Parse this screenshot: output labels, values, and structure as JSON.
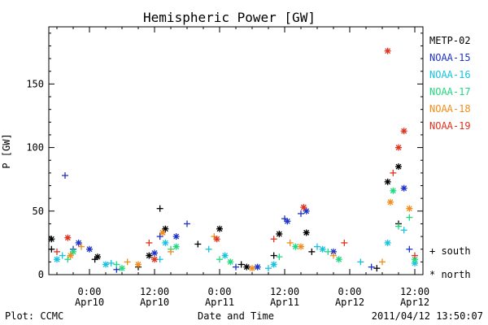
{
  "chart_data": {
    "type": "scatter",
    "title": "Hemispheric Power [GW]",
    "ylabel": "P [GW]",
    "xlabel": "Date and Time",
    "xlim": [
      "2011-04-09T16:30",
      "2011-04-12T13:30"
    ],
    "ylim": [
      0,
      195
    ],
    "y_ticks": [
      0,
      50,
      100,
      150
    ],
    "x_ticks": [
      {
        "time": "2011-04-10T00:00",
        "label1": "0:00",
        "label2": "Apr10"
      },
      {
        "time": "2011-04-10T12:00",
        "label1": "12:00",
        "label2": "Apr10"
      },
      {
        "time": "2011-04-11T00:00",
        "label1": "0:00",
        "label2": "Apr11"
      },
      {
        "time": "2011-04-11T12:00",
        "label1": "12:00",
        "label2": "Apr11"
      },
      {
        "time": "2011-04-12T00:00",
        "label1": "0:00",
        "label2": "Apr12"
      },
      {
        "time": "2011-04-12T12:00",
        "label1": "12:00",
        "label2": "Apr12"
      }
    ],
    "grid": false,
    "legend_position": "right",
    "marker_legend": [
      {
        "symbol": "+",
        "label": "south"
      },
      {
        "symbol": "*",
        "label": "north"
      }
    ],
    "series": [
      {
        "name": "METP-02",
        "color": "#000000",
        "south": [
          [
            "2011-04-09T17:00",
            20
          ],
          [
            "2011-04-10T01:00",
            12
          ],
          [
            "2011-04-10T09:00",
            6
          ],
          [
            "2011-04-10T13:00",
            52
          ],
          [
            "2011-04-10T20:00",
            24
          ],
          [
            "2011-04-11T04:00",
            8
          ],
          [
            "2011-04-11T10:00",
            15
          ],
          [
            "2011-04-11T17:00",
            18
          ],
          [
            "2011-04-12T05:00",
            5
          ],
          [
            "2011-04-12T09:00",
            40
          ]
        ],
        "north": [
          [
            "2011-04-09T17:00",
            28
          ],
          [
            "2011-04-10T01:30",
            14
          ],
          [
            "2011-04-10T11:00",
            15
          ],
          [
            "2011-04-10T14:00",
            36
          ],
          [
            "2011-04-11T00:00",
            36
          ],
          [
            "2011-04-11T05:00",
            6
          ],
          [
            "2011-04-11T11:00",
            32
          ],
          [
            "2011-04-11T16:00",
            33
          ],
          [
            "2011-04-12T07:00",
            73
          ],
          [
            "2011-04-12T09:00",
            85
          ]
        ]
      },
      {
        "name": "NOAA-15",
        "color": "#1f33c9",
        "south": [
          [
            "2011-04-09T19:30",
            78
          ],
          [
            "2011-04-09T21:00",
            20
          ],
          [
            "2011-04-10T05:00",
            4
          ],
          [
            "2011-04-10T13:00",
            30
          ],
          [
            "2011-04-10T18:00",
            40
          ],
          [
            "2011-04-11T03:00",
            6
          ],
          [
            "2011-04-11T12:00",
            44
          ],
          [
            "2011-04-11T15:00",
            48
          ],
          [
            "2011-04-12T04:00",
            6
          ],
          [
            "2011-04-12T11:00",
            20
          ]
        ],
        "north": [
          [
            "2011-04-09T22:00",
            25
          ],
          [
            "2011-04-10T00:00",
            20
          ],
          [
            "2011-04-10T12:00",
            17
          ],
          [
            "2011-04-10T16:00",
            30
          ],
          [
            "2011-04-11T07:00",
            6
          ],
          [
            "2011-04-11T12:30",
            42
          ],
          [
            "2011-04-11T16:00",
            50
          ],
          [
            "2011-04-11T21:00",
            18
          ],
          [
            "2011-04-12T10:00",
            68
          ]
        ]
      },
      {
        "name": "NOAA-16",
        "color": "#17c2e0",
        "south": [
          [
            "2011-04-09T19:00",
            15
          ],
          [
            "2011-04-10T04:00",
            9
          ],
          [
            "2011-04-10T13:00",
            12
          ],
          [
            "2011-04-10T22:00",
            20
          ],
          [
            "2011-04-11T09:00",
            5
          ],
          [
            "2011-04-11T18:00",
            22
          ],
          [
            "2011-04-12T02:00",
            10
          ],
          [
            "2011-04-12T10:00",
            35
          ]
        ],
        "north": [
          [
            "2011-04-09T18:00",
            12
          ],
          [
            "2011-04-10T03:00",
            8
          ],
          [
            "2011-04-10T14:00",
            25
          ],
          [
            "2011-04-11T01:00",
            15
          ],
          [
            "2011-04-11T10:00",
            8
          ],
          [
            "2011-04-11T19:00",
            20
          ],
          [
            "2011-04-12T07:00",
            25
          ],
          [
            "2011-04-12T12:00",
            9
          ]
        ]
      },
      {
        "name": "NOAA-17",
        "color": "#22d981",
        "south": [
          [
            "2011-04-09T20:00",
            12
          ],
          [
            "2011-04-10T05:00",
            8
          ],
          [
            "2011-04-10T15:00",
            20
          ],
          [
            "2011-04-11T00:00",
            12
          ],
          [
            "2011-04-11T11:00",
            14
          ],
          [
            "2011-04-11T20:00",
            18
          ],
          [
            "2011-04-12T09:00",
            38
          ],
          [
            "2011-04-12T11:00",
            45
          ]
        ],
        "north": [
          [
            "2011-04-09T21:00",
            18
          ],
          [
            "2011-04-10T06:00",
            5
          ],
          [
            "2011-04-10T16:00",
            22
          ],
          [
            "2011-04-11T02:00",
            10
          ],
          [
            "2011-04-11T14:00",
            22
          ],
          [
            "2011-04-11T22:00",
            12
          ],
          [
            "2011-04-12T08:00",
            66
          ],
          [
            "2011-04-12T12:00",
            12
          ]
        ]
      },
      {
        "name": "NOAA-18",
        "color": "#f28c1a",
        "south": [
          [
            "2011-04-09T22:30",
            22
          ],
          [
            "2011-04-10T07:00",
            10
          ],
          [
            "2011-04-10T15:00",
            18
          ],
          [
            "2011-04-10T23:00",
            30
          ],
          [
            "2011-04-11T13:00",
            25
          ],
          [
            "2011-04-11T21:00",
            15
          ],
          [
            "2011-04-12T06:00",
            10
          ]
        ],
        "north": [
          [
            "2011-04-09T20:30",
            15
          ],
          [
            "2011-04-10T09:00",
            8
          ],
          [
            "2011-04-10T13:30",
            33
          ],
          [
            "2011-04-11T06:00",
            5
          ],
          [
            "2011-04-11T15:00",
            22
          ],
          [
            "2011-04-12T07:30",
            57
          ],
          [
            "2011-04-12T11:00",
            52
          ]
        ]
      },
      {
        "name": "NOAA-19",
        "color": "#e0331f",
        "south": [
          [
            "2011-04-09T18:00",
            18
          ],
          [
            "2011-04-10T11:00",
            25
          ],
          [
            "2011-04-11T10:00",
            28
          ],
          [
            "2011-04-11T23:00",
            25
          ],
          [
            "2011-04-12T08:00",
            80
          ],
          [
            "2011-04-12T12:00",
            15
          ]
        ],
        "north": [
          [
            "2011-04-09T20:00",
            29
          ],
          [
            "2011-04-10T12:00",
            12
          ],
          [
            "2011-04-10T23:30",
            28
          ],
          [
            "2011-04-11T15:30",
            53
          ],
          [
            "2011-04-12T07:00",
            176
          ],
          [
            "2011-04-12T09:00",
            100
          ],
          [
            "2011-04-12T10:00",
            113
          ]
        ]
      }
    ]
  },
  "footer": {
    "left": "Plot: CCMC",
    "right": "2011/04/12 13:50:07"
  }
}
